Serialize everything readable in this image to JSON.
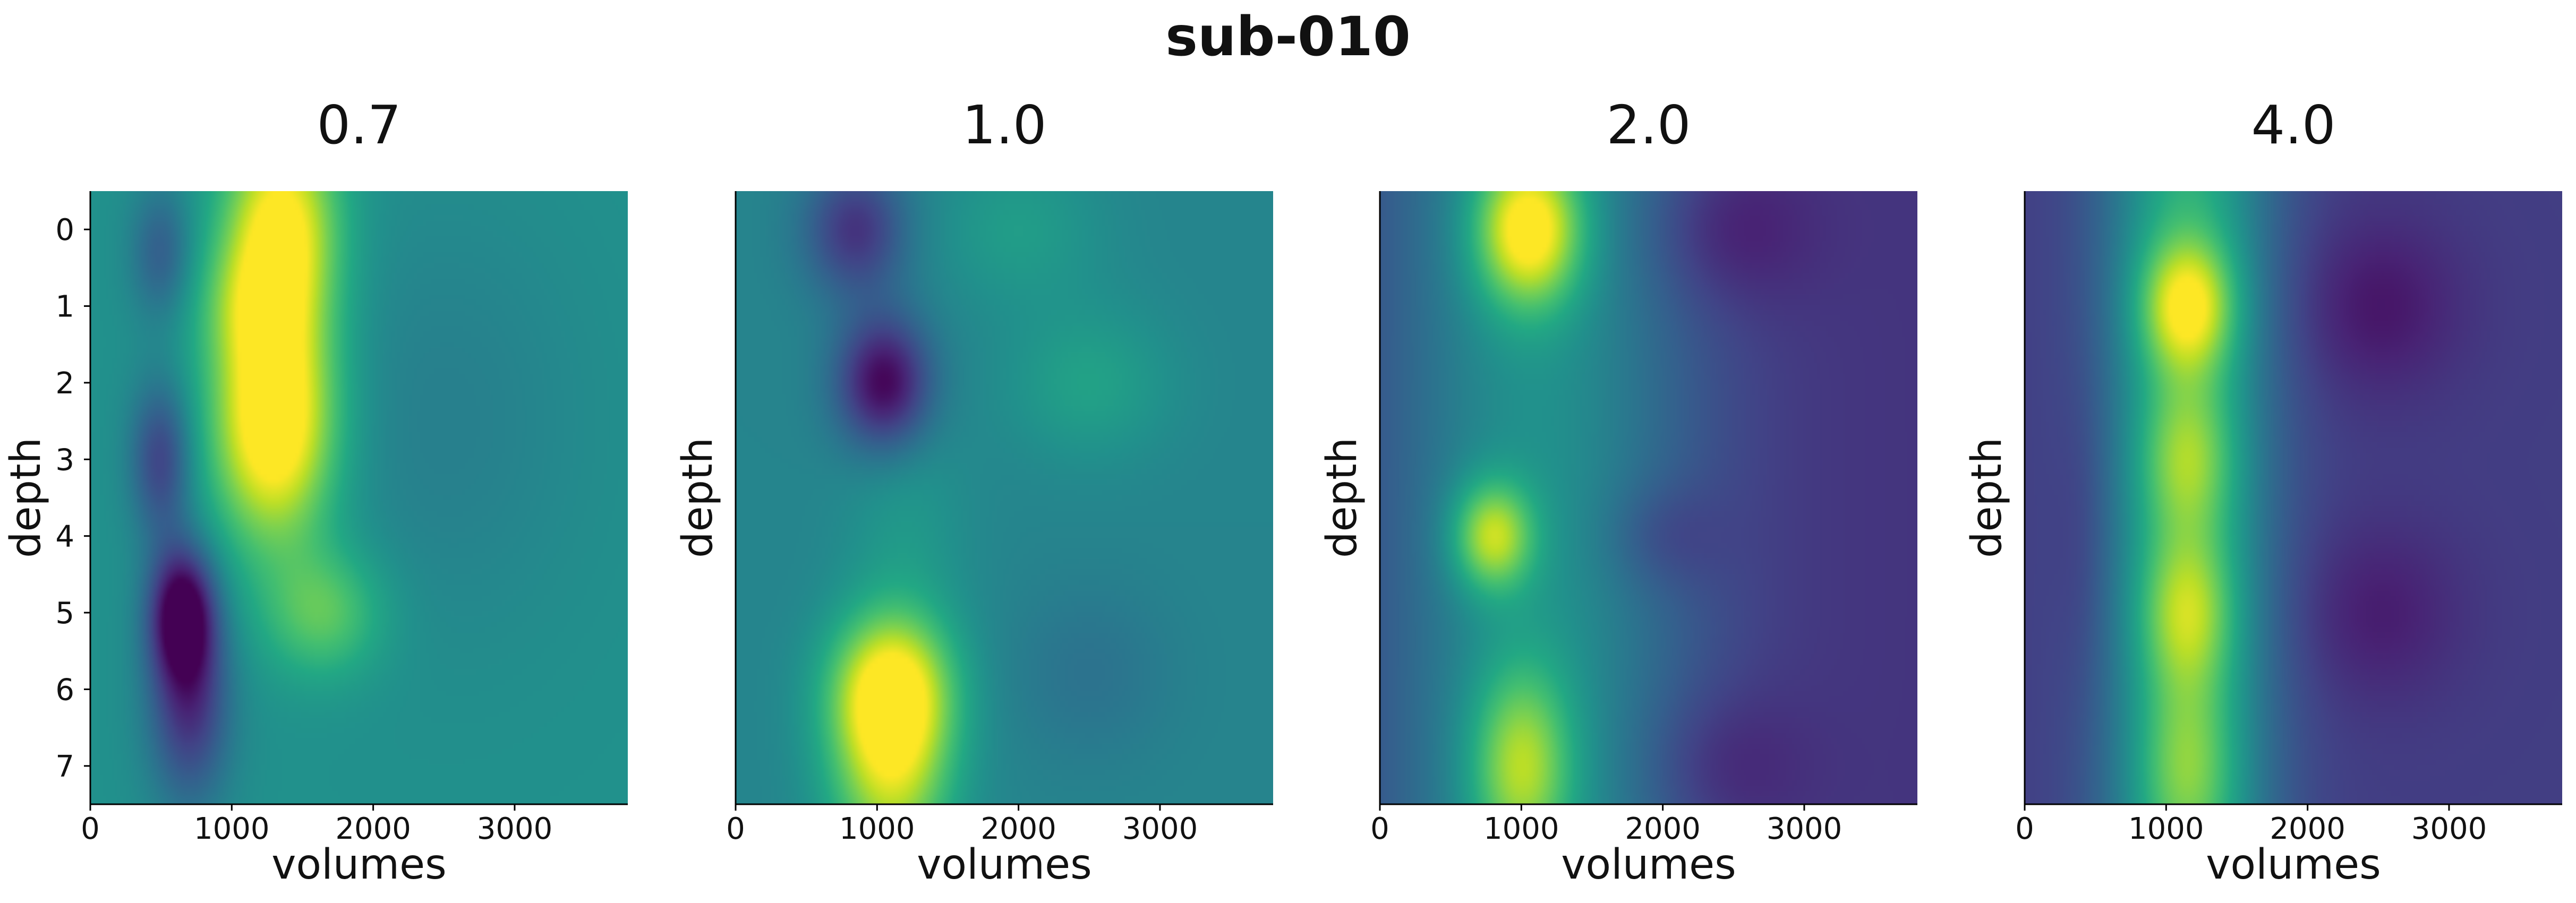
{
  "figure": {
    "title": "sub-010"
  },
  "chart_data": [
    {
      "type": "heatmap",
      "title": "0.7",
      "xlabel": "volumes",
      "ylabel": "depth",
      "x_ticks": [
        0,
        1000,
        2000,
        3000
      ],
      "xlim": [
        0,
        3800
      ],
      "y_ticks": [
        0,
        1,
        2,
        3,
        4,
        5,
        6,
        7
      ],
      "ylim": [
        7.5,
        -0.5
      ],
      "colormap": "viridis",
      "blobs": [
        {
          "x": 1350,
          "y": 0,
          "sx": 280,
          "sy": 1.0,
          "v": 0.55
        },
        {
          "x": 1300,
          "y": 2.5,
          "sx": 300,
          "sy": 1.1,
          "v": 0.65
        },
        {
          "x": 1650,
          "y": 5.0,
          "sx": 300,
          "sy": 0.6,
          "v": 0.25
        },
        {
          "x": 1100,
          "y": 1.0,
          "sx": 250,
          "sy": 0.6,
          "v": 0.15
        },
        {
          "x": 650,
          "y": 5.0,
          "sx": 160,
          "sy": 0.6,
          "v": -0.55
        },
        {
          "x": 700,
          "y": 6.2,
          "sx": 200,
          "sy": 0.9,
          "v": -0.35
        },
        {
          "x": 500,
          "y": 3.0,
          "sx": 150,
          "sy": 0.7,
          "v": -0.3
        },
        {
          "x": 500,
          "y": 0.3,
          "sx": 150,
          "sy": 0.6,
          "v": -0.2
        },
        {
          "x": 2500,
          "y": 2.5,
          "sx": 700,
          "sy": 2.0,
          "v": -0.07
        }
      ],
      "base": 0.5
    },
    {
      "type": "heatmap",
      "title": "1.0",
      "xlabel": "volumes",
      "ylabel": "depth",
      "x_ticks": [
        0,
        1000,
        2000,
        3000
      ],
      "xlim": [
        0,
        3800
      ],
      "y_ticks": [],
      "ylim": [
        7.5,
        -0.5
      ],
      "colormap": "viridis",
      "blobs": [
        {
          "x": 1100,
          "y": 6.0,
          "sx": 300,
          "sy": 0.7,
          "v": 0.55
        },
        {
          "x": 1100,
          "y": 7.2,
          "sx": 300,
          "sy": 0.9,
          "v": 0.4
        },
        {
          "x": 1050,
          "y": 2.0,
          "sx": 230,
          "sy": 0.6,
          "v": -0.45
        },
        {
          "x": 850,
          "y": 0.0,
          "sx": 250,
          "sy": 0.6,
          "v": -0.3
        },
        {
          "x": 2500,
          "y": 2.0,
          "sx": 400,
          "sy": 0.7,
          "v": 0.12
        },
        {
          "x": 2000,
          "y": 0.0,
          "sx": 400,
          "sy": 0.7,
          "v": 0.1
        },
        {
          "x": 2500,
          "y": 5.8,
          "sx": 400,
          "sy": 0.8,
          "v": -0.07
        },
        {
          "x": 1200,
          "y": 4.0,
          "sx": 300,
          "sy": 1.2,
          "v": 0.08
        }
      ],
      "base": 0.45
    },
    {
      "type": "heatmap",
      "title": "2.0",
      "xlabel": "volumes",
      "ylabel": "depth",
      "x_ticks": [
        0,
        1000,
        2000,
        3000
      ],
      "xlim": [
        0,
        3800
      ],
      "y_ticks": [],
      "ylim": [
        7.5,
        -0.5
      ],
      "colormap": "viridis",
      "blobs": [
        {
          "x": 1100,
          "y": 7.5,
          "sx": 800,
          "sy": 40.0,
          "v": 0.35
        },
        {
          "x": 1050,
          "y": 0.0,
          "sx": 260,
          "sy": 0.7,
          "v": 0.6
        },
        {
          "x": 800,
          "y": 4.0,
          "sx": 200,
          "sy": 0.5,
          "v": 0.45
        },
        {
          "x": 1000,
          "y": 7.0,
          "sx": 250,
          "sy": 0.9,
          "v": 0.4
        },
        {
          "x": 2450,
          "y": 0.0,
          "sx": 400,
          "sy": 0.7,
          "v": -0.12
        },
        {
          "x": 2000,
          "y": 4.0,
          "sx": 300,
          "sy": 0.5,
          "v": -0.1
        },
        {
          "x": 2400,
          "y": 7.0,
          "sx": 400,
          "sy": 0.7,
          "v": -0.1
        }
      ],
      "base": 0.15
    },
    {
      "type": "heatmap",
      "title": "4.0",
      "xlabel": "volumes",
      "ylabel": "depth",
      "x_ticks": [
        0,
        1000,
        2000,
        3000
      ],
      "xlim": [
        0,
        3800
      ],
      "y_ticks": [],
      "ylim": [
        7.5,
        -0.5
      ],
      "colormap": "viridis",
      "blobs": [
        {
          "x": 1150,
          "y": 7.5,
          "sx": 420,
          "sy": 40.0,
          "v": 0.45
        },
        {
          "x": 1150,
          "y": 1.0,
          "sx": 230,
          "sy": 0.6,
          "v": 0.45
        },
        {
          "x": 1150,
          "y": 3.0,
          "sx": 230,
          "sy": 0.7,
          "v": 0.25
        },
        {
          "x": 1150,
          "y": 5.0,
          "sx": 230,
          "sy": 0.7,
          "v": 0.3
        },
        {
          "x": 1150,
          "y": 7.0,
          "sx": 230,
          "sy": 0.8,
          "v": 0.2
        },
        {
          "x": 400,
          "y": 4.0,
          "sx": 150,
          "sy": 1.5,
          "v": -0.05
        },
        {
          "x": 2500,
          "y": 1.0,
          "sx": 400,
          "sy": 0.8,
          "v": -0.12
        },
        {
          "x": 2500,
          "y": 5.0,
          "sx": 400,
          "sy": 0.8,
          "v": -0.1
        }
      ],
      "base": 0.18
    }
  ]
}
